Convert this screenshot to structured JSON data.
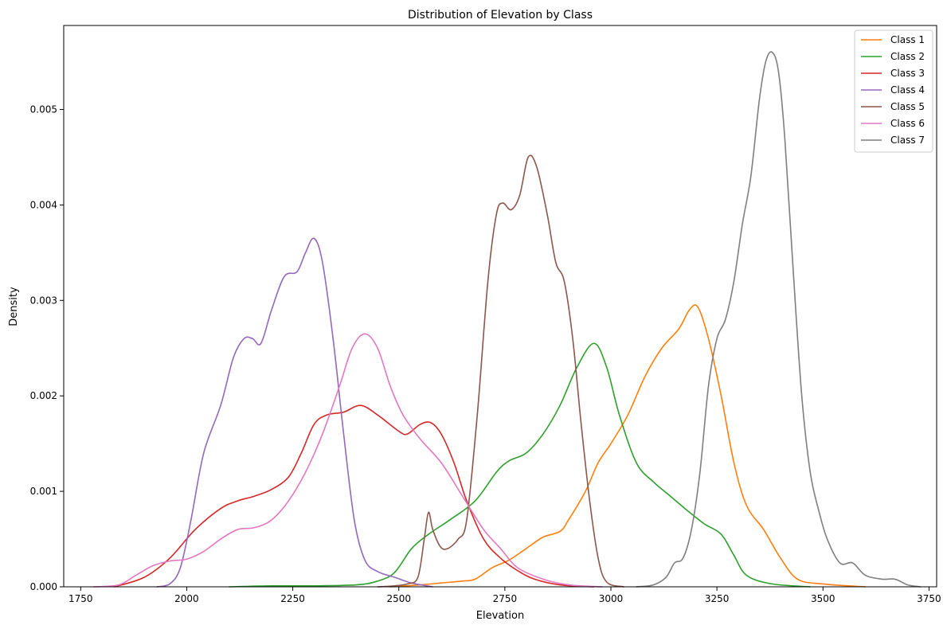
{
  "chart_data": {
    "type": "line",
    "title": "Distribution of Elevation by Class",
    "xlabel": "Elevation",
    "ylabel": "Density",
    "xlim": [
      1710,
      3768
    ],
    "ylim": [
      0,
      0.00588
    ],
    "xticks": [
      1750,
      2000,
      2250,
      2500,
      2750,
      3000,
      3250,
      3500,
      3750
    ],
    "xtick_labels": [
      "1750",
      "2000",
      "2250",
      "2500",
      "2750",
      "3000",
      "3250",
      "3500",
      "3750"
    ],
    "yticks": [
      0,
      0.001,
      0.002,
      0.003,
      0.004,
      0.005
    ],
    "ytick_labels": [
      "0.000",
      "0.001",
      "0.002",
      "0.003",
      "0.004",
      "0.005"
    ],
    "grid": false,
    "legend_position": "top-right",
    "series": [
      {
        "name": "Class 1",
        "color": "#ff7f0e",
        "points": [
          [
            2480,
            0
          ],
          [
            2550,
            2e-05
          ],
          [
            2600,
            4e-05
          ],
          [
            2650,
            6e-05
          ],
          [
            2680,
            8e-05
          ],
          [
            2720,
            0.0002
          ],
          [
            2760,
            0.00028
          ],
          [
            2800,
            0.0004
          ],
          [
            2840,
            0.00052
          ],
          [
            2880,
            0.00058
          ],
          [
            2900,
            0.0007
          ],
          [
            2940,
            0.001
          ],
          [
            2970,
            0.0013
          ],
          [
            3000,
            0.0015
          ],
          [
            3040,
            0.0018
          ],
          [
            3080,
            0.0022
          ],
          [
            3120,
            0.0025
          ],
          [
            3160,
            0.0027
          ],
          [
            3185,
            0.0029
          ],
          [
            3205,
            0.00293
          ],
          [
            3230,
            0.0026
          ],
          [
            3260,
            0.002
          ],
          [
            3290,
            0.0013
          ],
          [
            3320,
            0.00085
          ],
          [
            3360,
            0.0006
          ],
          [
            3400,
            0.0003
          ],
          [
            3440,
            8e-05
          ],
          [
            3500,
            3e-05
          ],
          [
            3600,
            0
          ]
        ]
      },
      {
        "name": "Class 2",
        "color": "#2ca02c",
        "points": [
          [
            2100,
            0
          ],
          [
            2200,
            1e-05
          ],
          [
            2300,
            1e-05
          ],
          [
            2400,
            2e-05
          ],
          [
            2450,
            6e-05
          ],
          [
            2490,
            0.00015
          ],
          [
            2530,
            0.0004
          ],
          [
            2570,
            0.00055
          ],
          [
            2620,
            0.0007
          ],
          [
            2680,
            0.0009
          ],
          [
            2730,
            0.0012
          ],
          [
            2760,
            0.00132
          ],
          [
            2800,
            0.0014
          ],
          [
            2840,
            0.0016
          ],
          [
            2880,
            0.0019
          ],
          [
            2920,
            0.0023
          ],
          [
            2960,
            0.00255
          ],
          [
            2990,
            0.0023
          ],
          [
            3020,
            0.0018
          ],
          [
            3060,
            0.0013
          ],
          [
            3100,
            0.0011
          ],
          [
            3140,
            0.00095
          ],
          [
            3180,
            0.0008
          ],
          [
            3220,
            0.00066
          ],
          [
            3260,
            0.00055
          ],
          [
            3290,
            0.00033
          ],
          [
            3320,
            0.00012
          ],
          [
            3380,
            3e-05
          ],
          [
            3470,
            0
          ]
        ]
      },
      {
        "name": "Class 3",
        "color": "#d62728",
        "points": [
          [
            1830,
            0
          ],
          [
            1900,
            0.0001
          ],
          [
            1960,
            0.0003
          ],
          [
            2020,
            0.0006
          ],
          [
            2080,
            0.00082
          ],
          [
            2120,
            0.0009
          ],
          [
            2160,
            0.00095
          ],
          [
            2200,
            0.00102
          ],
          [
            2240,
            0.00115
          ],
          [
            2270,
            0.0014
          ],
          [
            2300,
            0.0017
          ],
          [
            2330,
            0.0018
          ],
          [
            2370,
            0.00183
          ],
          [
            2410,
            0.0019
          ],
          [
            2450,
            0.0018
          ],
          [
            2500,
            0.00163
          ],
          [
            2520,
            0.0016
          ],
          [
            2550,
            0.0017
          ],
          [
            2575,
            0.00172
          ],
          [
            2600,
            0.0016
          ],
          [
            2630,
            0.0013
          ],
          [
            2660,
            0.0009
          ],
          [
            2700,
            0.0005
          ],
          [
            2740,
            0.0003
          ],
          [
            2780,
            0.00017
          ],
          [
            2820,
            8e-05
          ],
          [
            2880,
            2e-05
          ],
          [
            2960,
            0
          ]
        ]
      },
      {
        "name": "Class 4",
        "color": "#9467bd",
        "points": [
          [
            1930,
            0
          ],
          [
            1960,
            3e-05
          ],
          [
            1985,
            0.0002
          ],
          [
            2010,
            0.0007
          ],
          [
            2040,
            0.0014
          ],
          [
            2080,
            0.0019
          ],
          [
            2110,
            0.0024
          ],
          [
            2135,
            0.0026
          ],
          [
            2155,
            0.0026
          ],
          [
            2175,
            0.00255
          ],
          [
            2200,
            0.0029
          ],
          [
            2230,
            0.00325
          ],
          [
            2260,
            0.0033
          ],
          [
            2280,
            0.0035
          ],
          [
            2300,
            0.00365
          ],
          [
            2320,
            0.0034
          ],
          [
            2345,
            0.0026
          ],
          [
            2370,
            0.0016
          ],
          [
            2395,
            0.0007
          ],
          [
            2420,
            0.00028
          ],
          [
            2450,
            0.00016
          ],
          [
            2490,
            0.0001
          ],
          [
            2530,
            4e-05
          ],
          [
            2580,
            0
          ]
        ]
      },
      {
        "name": "Class 5",
        "color": "#8c564b",
        "points": [
          [
            2450,
            0
          ],
          [
            2490,
            1e-05
          ],
          [
            2520,
            3e-05
          ],
          [
            2545,
            0.0001
          ],
          [
            2560,
            0.0005
          ],
          [
            2570,
            0.00078
          ],
          [
            2580,
            0.0006
          ],
          [
            2598,
            0.00042
          ],
          [
            2615,
            0.0004
          ],
          [
            2640,
            0.0005
          ],
          [
            2660,
            0.0007
          ],
          [
            2685,
            0.0018
          ],
          [
            2710,
            0.0032
          ],
          [
            2730,
            0.0039
          ],
          [
            2745,
            0.00402
          ],
          [
            2765,
            0.00395
          ],
          [
            2785,
            0.0041
          ],
          [
            2805,
            0.0045
          ],
          [
            2825,
            0.0044
          ],
          [
            2850,
            0.0039
          ],
          [
            2870,
            0.0034
          ],
          [
            2890,
            0.0032
          ],
          [
            2910,
            0.0026
          ],
          [
            2930,
            0.0017
          ],
          [
            2950,
            0.0009
          ],
          [
            2970,
            0.0003
          ],
          [
            2990,
            5e-05
          ],
          [
            3030,
            0
          ]
        ]
      },
      {
        "name": "Class 6",
        "color": "#e377c2",
        "points": [
          [
            1780,
            0
          ],
          [
            1840,
            2e-05
          ],
          [
            1880,
            0.00012
          ],
          [
            1920,
            0.00022
          ],
          [
            1960,
            0.00027
          ],
          [
            2000,
            0.00029
          ],
          [
            2040,
            0.00037
          ],
          [
            2080,
            0.0005
          ],
          [
            2120,
            0.0006
          ],
          [
            2160,
            0.00062
          ],
          [
            2200,
            0.0007
          ],
          [
            2240,
            0.0009
          ],
          [
            2280,
            0.0012
          ],
          [
            2320,
            0.0016
          ],
          [
            2360,
            0.0021
          ],
          [
            2390,
            0.0025
          ],
          [
            2420,
            0.00265
          ],
          [
            2450,
            0.0025
          ],
          [
            2480,
            0.0021
          ],
          [
            2510,
            0.0018
          ],
          [
            2550,
            0.00155
          ],
          [
            2600,
            0.0013
          ],
          [
            2650,
            0.00095
          ],
          [
            2700,
            0.0006
          ],
          [
            2740,
            0.0004
          ],
          [
            2780,
            0.0002
          ],
          [
            2840,
            8e-05
          ],
          [
            2900,
            2e-05
          ],
          [
            2980,
            0
          ]
        ]
      },
      {
        "name": "Class 7",
        "color": "#7f7f7f",
        "points": [
          [
            3060,
            0
          ],
          [
            3100,
            2e-05
          ],
          [
            3130,
            0.0001
          ],
          [
            3150,
            0.00025
          ],
          [
            3170,
            0.0003
          ],
          [
            3190,
            0.0006
          ],
          [
            3210,
            0.0012
          ],
          [
            3230,
            0.0021
          ],
          [
            3250,
            0.0026
          ],
          [
            3270,
            0.0028
          ],
          [
            3290,
            0.0032
          ],
          [
            3310,
            0.0038
          ],
          [
            3330,
            0.0043
          ],
          [
            3350,
            0.0051
          ],
          [
            3365,
            0.0055
          ],
          [
            3380,
            0.0056
          ],
          [
            3395,
            0.0054
          ],
          [
            3410,
            0.0047
          ],
          [
            3430,
            0.0033
          ],
          [
            3450,
            0.002
          ],
          [
            3470,
            0.0012
          ],
          [
            3490,
            0.0008
          ],
          [
            3510,
            0.0005
          ],
          [
            3540,
            0.00025
          ],
          [
            3570,
            0.00025
          ],
          [
            3600,
            0.00012
          ],
          [
            3640,
            8e-05
          ],
          [
            3670,
            8e-05
          ],
          [
            3700,
            2e-05
          ],
          [
            3730,
            0
          ]
        ]
      }
    ]
  }
}
